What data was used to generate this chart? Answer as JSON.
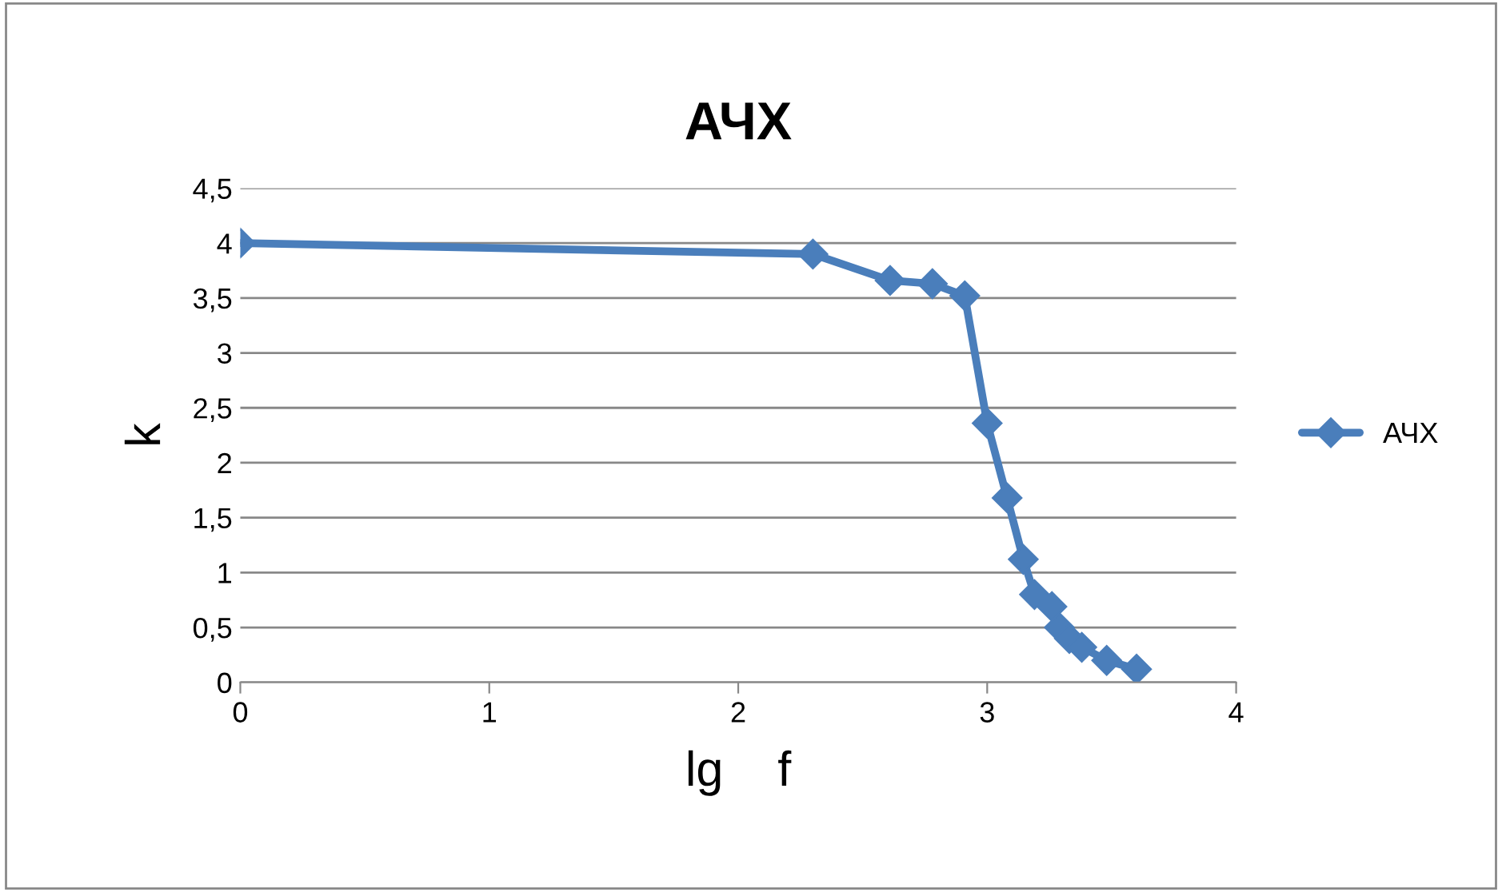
{
  "chart_data": {
    "type": "line",
    "title": "АЧХ",
    "xlabel": "lg    f",
    "ylabel": "k",
    "series": [
      {
        "name": "АЧХ",
        "color": "#4a7ebb",
        "x": [
          0,
          2.3,
          2.61,
          2.78,
          2.91,
          3.0,
          3.08,
          3.145,
          3.19,
          3.26,
          3.29,
          3.33,
          3.38,
          3.48,
          3.6
        ],
        "values": [
          4.0,
          3.9,
          3.66,
          3.63,
          3.52,
          2.36,
          1.68,
          1.12,
          0.8,
          0.69,
          0.5,
          0.4,
          0.32,
          0.2,
          0.12
        ]
      }
    ],
    "xlim": [
      0,
      4
    ],
    "xticks": [
      0,
      1,
      2,
      3,
      4
    ],
    "ylim": [
      0,
      4.5
    ],
    "yticks": [
      0,
      {
        "value": 0.5,
        "label": "0,5"
      },
      1,
      {
        "value": 1.5,
        "label": "1,5"
      },
      2,
      {
        "value": 2.5,
        "label": "2,5"
      },
      3,
      {
        "value": 3.5,
        "label": "3,5"
      },
      4,
      {
        "value": 4.5,
        "label": "4,5"
      }
    ],
    "grid": "y",
    "legend": "right",
    "marker": "diamond",
    "line_style": "solid"
  }
}
